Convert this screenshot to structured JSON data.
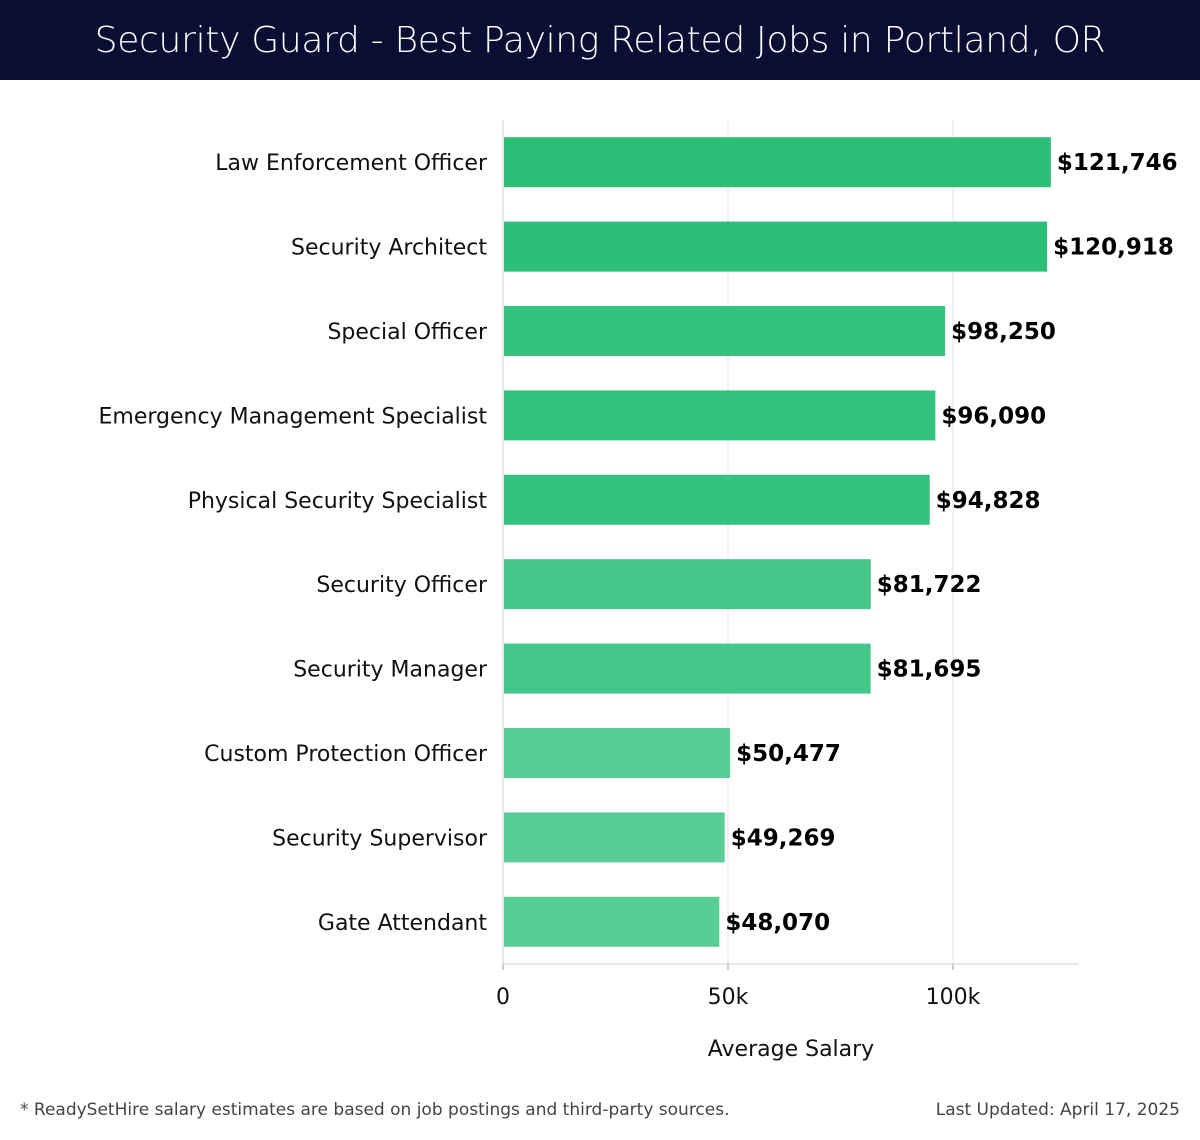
{
  "title": "Security Guard - Best Paying Related Jobs in Portland, OR",
  "footnote": "* ReadySetHire salary estimates are based on job postings and third-party sources.",
  "last_updated": "Last Updated: April 17, 2025",
  "chart_data": {
    "type": "bar",
    "orientation": "horizontal",
    "title": "Security Guard - Best Paying Related Jobs in Portland, OR",
    "xlabel": "Average Salary",
    "ylabel": "",
    "xlim": [
      0,
      128000
    ],
    "x_ticks": [
      {
        "value": 0,
        "label": "0"
      },
      {
        "value": 50000,
        "label": "50k"
      },
      {
        "value": 100000,
        "label": "100k"
      }
    ],
    "grid": "vertical",
    "categories": [
      "Law Enforcement Officer",
      "Security Architect",
      "Special Officer",
      "Emergency Management Specialist",
      "Physical Security Specialist",
      "Security Officer",
      "Security Manager",
      "Custom Protection Officer",
      "Security Supervisor",
      "Gate Attendant"
    ],
    "values": [
      121746,
      120918,
      98250,
      96090,
      94828,
      81722,
      81695,
      50477,
      49269,
      48070
    ],
    "value_labels": [
      "$121,746",
      "$120,918",
      "$98,250",
      "$96,090",
      "$94,828",
      "$81,722",
      "$81,695",
      "$50,477",
      "$49,269",
      "$48,070"
    ],
    "bar_colors": [
      "#2dbe78",
      "#2dbe78",
      "#35c27e",
      "#35c27e",
      "#35c27e",
      "#45c68a",
      "#45c68a",
      "#58cd96",
      "#58cd96",
      "#58cd96"
    ]
  }
}
